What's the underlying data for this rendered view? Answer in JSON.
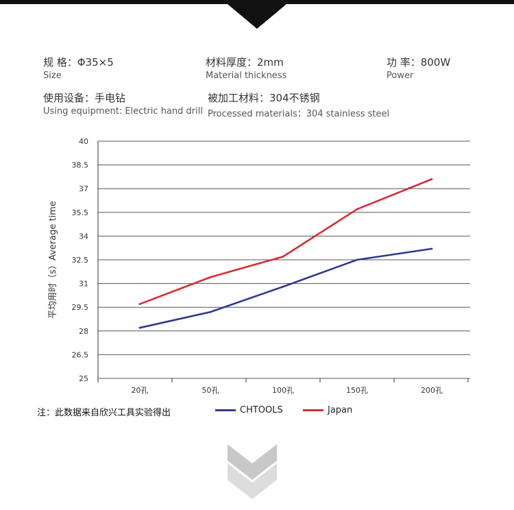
{
  "specs": [
    {
      "cn": "规  格：Φ35×5",
      "en": "Size"
    },
    {
      "cn": "材料厚度：2mm",
      "en": "Material thickness"
    },
    {
      "cn": "功  率：800W",
      "en": "Power"
    },
    {
      "cn": "使用设备：手电钻",
      "en": "Using equipment: Electric hand drill"
    },
    {
      "cn": "被加工材料：304不锈钢",
      "en": "Processed materials：304 stainless steel"
    }
  ],
  "note": "注：此数据来自欣兴工具实验得出",
  "colors": {
    "chtools": "#2e3a8c",
    "japan": "#d62b35",
    "grid": "#555555"
  },
  "chart_data": {
    "type": "line",
    "title": "",
    "xlabel": "",
    "ylabel": "平均用时（s）Average time",
    "categories": [
      "20孔",
      "50孔",
      "100孔",
      "150孔",
      "200孔"
    ],
    "ylim": [
      25,
      40
    ],
    "yticks": [
      "25",
      "26.5",
      "28",
      "29.5",
      "31",
      "32.5",
      "34",
      "35.5",
      "37",
      "38.5",
      "40"
    ],
    "grid": true,
    "legend_position": "bottom",
    "series": [
      {
        "name": "CHTOOLS",
        "values": [
          28.2,
          29.2,
          30.8,
          32.5,
          33.2
        ]
      },
      {
        "name": "Japan",
        "values": [
          29.7,
          31.4,
          32.7,
          35.7,
          37.6
        ]
      }
    ]
  }
}
